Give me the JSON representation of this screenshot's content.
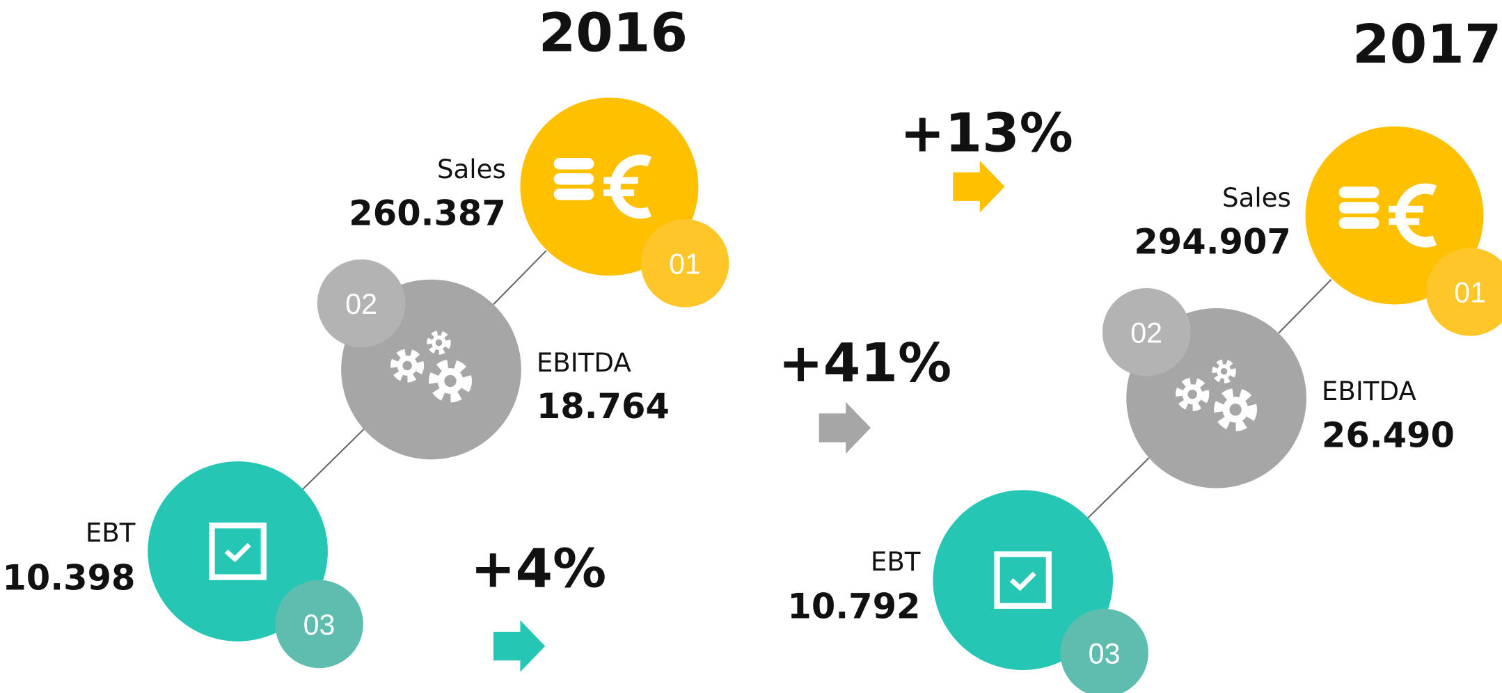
{
  "years": [
    {
      "title": "2016",
      "badges": [
        "01",
        "02",
        "03"
      ],
      "sales": {
        "label": "Sales",
        "value": "260.387"
      },
      "ebitda": {
        "label": "EBITDA",
        "value": "18.764"
      },
      "ebt": {
        "label": "EBT",
        "value": "10.398"
      }
    },
    {
      "title": "2017",
      "badges": [
        "01",
        "02",
        "03"
      ],
      "sales": {
        "label": "Sales",
        "value": "294.907"
      },
      "ebitda": {
        "label": "EBITDA",
        "value": "26.490"
      },
      "ebt": {
        "label": "EBT",
        "value": "10.792"
      }
    }
  ],
  "changes": [
    {
      "metric": "Sales",
      "text": "+13%"
    },
    {
      "metric": "EBITDA",
      "text": "+41%"
    },
    {
      "metric": "EBT",
      "text": "+4%"
    }
  ]
}
